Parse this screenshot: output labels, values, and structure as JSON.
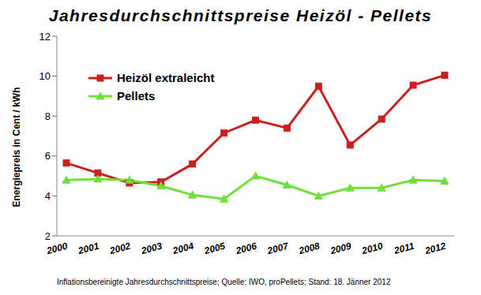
{
  "chart_data": {
    "type": "line",
    "title": "Jahresdurchschnittspreise Heizöl - Pellets",
    "y_label": "Energiepreis in Cent / kWh",
    "annotations": [
      "Inflationsbereinigte Jahresdurchschnittspreise; Quelle: IWO, proPellets; Stand: 18. Jänner 2012"
    ],
    "categories": [
      "2000",
      "2001",
      "2002",
      "2003",
      "2004",
      "2005",
      "2006",
      "2007",
      "2008",
      "2009",
      "2010",
      "2011",
      "2012"
    ],
    "series": [
      {
        "name": "Heizöl extraleicht",
        "color": "#cc1f1f",
        "marker": "square",
        "values": [
          5.65,
          5.15,
          4.65,
          4.7,
          5.6,
          7.15,
          7.8,
          7.4,
          9.5,
          6.55,
          7.85,
          9.55,
          10.05
        ]
      },
      {
        "name": "Pellets",
        "color": "#6fe03a",
        "marker": "triangle",
        "values": [
          4.8,
          4.85,
          4.8,
          4.5,
          4.05,
          3.85,
          5.0,
          4.55,
          4.0,
          4.4,
          4.4,
          4.8,
          4.75
        ]
      }
    ],
    "ylim": [
      2,
      12
    ],
    "yticks": [
      2,
      4,
      6,
      8,
      10,
      12
    ],
    "grid": false,
    "legend": "upper left"
  }
}
